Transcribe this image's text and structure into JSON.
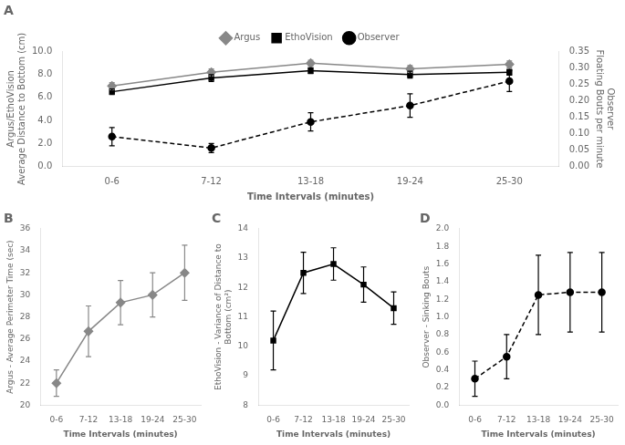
{
  "chart_data": [
    {
      "type": "line",
      "title": "A",
      "categories": [
        "0-6",
        "7-12",
        "13-18",
        "19-24",
        "25-30"
      ],
      "xlabel": "Time Intervals (minutes)",
      "ylabel": "Argus/EthoVision\nAverage Distance to Bottom (cm)",
      "y2label": "Observer\nFloating Bouts per minute",
      "ylim": [
        0,
        10.0
      ],
      "yticks": [
        {
          "value": 0.0,
          "label": "0.0"
        },
        {
          "value": 2.0,
          "label": "2.0"
        },
        {
          "value": 4.0,
          "label": "4.0"
        },
        {
          "value": 6.0,
          "label": "6.0"
        },
        {
          "value": 8.0,
          "label": "8.0"
        },
        {
          "value": 10.0,
          "label": "10.0"
        }
      ],
      "y2lim": [
        0.0,
        0.35
      ],
      "y2ticks": [
        {
          "value": 0.0,
          "label": "0.00"
        },
        0.05,
        {
          "value": 0.1,
          "label": "0.10"
        },
        0.15,
        {
          "value": 0.2,
          "label": "0.20"
        },
        0.25,
        {
          "value": 0.3,
          "label": "0.30"
        },
        0.35
      ],
      "grid": false,
      "legend": "top",
      "series": [
        {
          "name": "Argus",
          "color": "#888888",
          "marker": "diamond",
          "line_style": "solid",
          "values": [
            7.0,
            8.2,
            9.0,
            8.5,
            8.9
          ],
          "errors": [
            0.3,
            0.3,
            0.25,
            0.3,
            0.3
          ]
        },
        {
          "name": "EthoVision",
          "color": "#000000",
          "marker": "square",
          "line_style": "solid",
          "values": [
            6.5,
            7.7,
            8.35,
            8.0,
            8.2
          ],
          "errors": [
            0.25,
            0.3,
            0.25,
            0.3,
            0.25
          ]
        },
        {
          "name": "Observer",
          "color": "#000000",
          "marker": "circle",
          "line_style": "dashed",
          "axis": "y2",
          "values": [
            0.09,
            0.055,
            0.135,
            0.185,
            0.26
          ],
          "errors": [
            0.028,
            0.014,
            0.028,
            0.036,
            0.032
          ]
        }
      ]
    },
    {
      "type": "line",
      "title": "B",
      "categories": [
        "0-6",
        "7-12",
        "13-18",
        "19-24",
        "25-30"
      ],
      "xlabel": "Time Intervals (minutes)",
      "ylabel": "Argus - Average Perimeter Time (sec)",
      "ylim": [
        20,
        36
      ],
      "yticks": [
        20,
        22,
        24,
        26,
        28,
        30,
        32,
        34,
        36
      ],
      "grid": false,
      "color": "#888888",
      "marker": "diamond",
      "line_style": "solid",
      "values": [
        22.0,
        26.7,
        29.3,
        30.0,
        32.0
      ],
      "errors": [
        1.2,
        2.3,
        2.0,
        2.0,
        2.5
      ]
    },
    {
      "type": "line",
      "title": "C",
      "categories": [
        "0-6",
        "7-12",
        "13-18",
        "19-24",
        "25-30"
      ],
      "xlabel": "Time Intervals (minutes)",
      "ylabel": "EthoVision - Variance of Distance to\nBottom (cm²)",
      "ylim": [
        8,
        14
      ],
      "yticks": [
        8,
        9,
        10,
        11,
        12,
        13,
        14
      ],
      "grid": false,
      "color": "#000000",
      "marker": "square",
      "line_style": "solid",
      "values": [
        10.2,
        12.5,
        12.8,
        12.1,
        11.3
      ],
      "errors": [
        1.0,
        0.7,
        0.55,
        0.6,
        0.55
      ]
    },
    {
      "type": "line",
      "title": "D",
      "categories": [
        "0-6",
        "7-12",
        "13-18",
        "19-24",
        "25-30"
      ],
      "xlabel": "Time Intervals (minutes)",
      "ylabel": "Observer - Sinking Bouts",
      "ylim": [
        0.0,
        2.0
      ],
      "yticks": [
        {
          "value": 0.0,
          "label": "0.0"
        },
        0.2,
        0.4,
        0.6,
        0.8,
        {
          "value": 1.0,
          "label": "1.0"
        },
        1.2,
        1.4,
        1.6,
        1.8,
        {
          "value": 2.0,
          "label": "2.0"
        }
      ],
      "grid": false,
      "color": "#000000",
      "marker": "circle",
      "line_style": "dashed",
      "values": [
        0.3,
        0.55,
        1.25,
        1.28,
        1.28
      ],
      "errors": [
        0.2,
        0.25,
        0.45,
        0.45,
        0.45
      ]
    }
  ]
}
